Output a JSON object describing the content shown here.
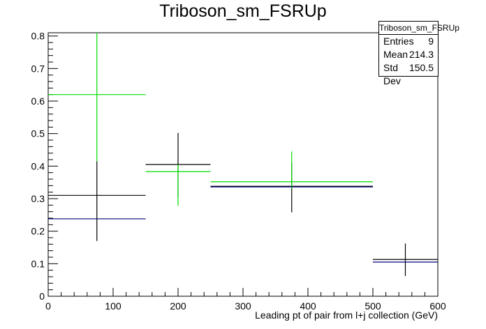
{
  "chart_data": {
    "type": "histogram",
    "title": "Triboson_sm_FSRUp",
    "xlabel": "Leading pt of pair from l+j collection (GeV)",
    "ylabel": "",
    "xlim": [
      0,
      600
    ],
    "ylim": [
      0,
      0.81
    ],
    "xticks": [
      0,
      100,
      200,
      300,
      400,
      500,
      600
    ],
    "yticks": [
      0,
      0.1,
      0.2,
      0.3,
      0.4,
      0.5,
      0.6,
      0.7,
      0.8
    ],
    "grid": false,
    "series": [
      {
        "color": "#000000",
        "bins": [
          {
            "xlo": 0,
            "xhi": 150,
            "y": 0.31,
            "ylo": 0.17,
            "yhi": 0.415
          },
          {
            "xlo": 150,
            "xhi": 250,
            "y": 0.405,
            "ylo": 0.305,
            "yhi": 0.502
          },
          {
            "xlo": 250,
            "xhi": 500,
            "y": 0.338,
            "ylo": 0.258,
            "yhi": 0.41
          },
          {
            "xlo": 500,
            "xhi": 600,
            "y": 0.113,
            "ylo": 0.062,
            "yhi": 0.162
          }
        ]
      },
      {
        "color": "#00dd00",
        "bins": [
          {
            "xlo": 0,
            "xhi": 150,
            "y": 0.62,
            "ylo": 0.415,
            "yhi": 0.81
          },
          {
            "xlo": 150,
            "xhi": 250,
            "y": 0.383,
            "ylo": 0.278,
            "yhi": 0.405
          },
          {
            "xlo": 250,
            "xhi": 500,
            "y": 0.352,
            "ylo": 0.33,
            "yhi": 0.445
          }
        ]
      },
      {
        "color": "#000080",
        "bins": [
          {
            "xlo": 0,
            "xhi": 150,
            "y": 0.238,
            "ylo": 0.238,
            "yhi": 0.238
          },
          {
            "xlo": 250,
            "xhi": 500,
            "y": 0.336,
            "ylo": 0.336,
            "yhi": 0.336
          },
          {
            "xlo": 500,
            "xhi": 600,
            "y": 0.105,
            "ylo": 0.105,
            "yhi": 0.105
          }
        ]
      }
    ]
  },
  "stats_box": {
    "name": "Triboson_sm_FSRUp",
    "entries_label": "Entries",
    "entries_value": "9",
    "mean_label": "Mean",
    "mean_value": "214.3",
    "stddev_label": "Std Dev",
    "stddev_value": "150.5"
  }
}
